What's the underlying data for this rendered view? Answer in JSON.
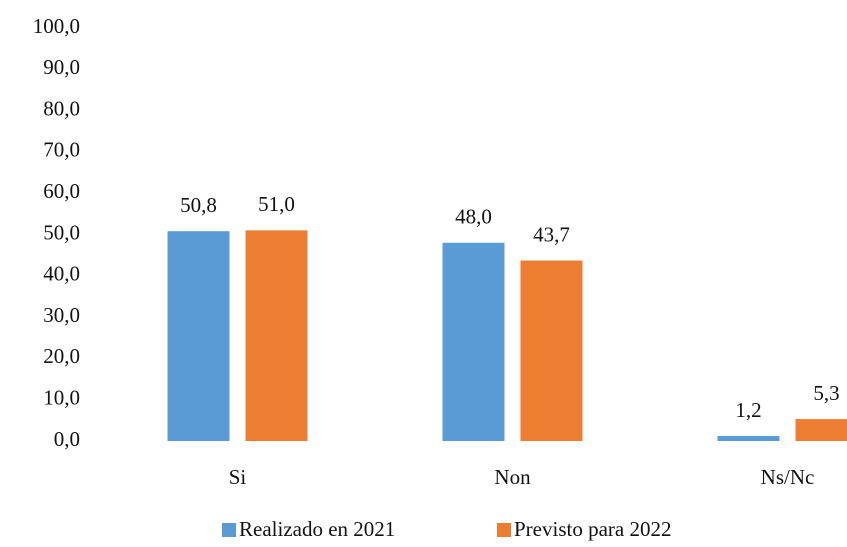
{
  "chart_data": {
    "type": "bar",
    "categories": [
      "Si",
      "Non",
      "Ns/Nc"
    ],
    "series": [
      {
        "name": "Realizado en 2021",
        "color": "#5b9bd5",
        "values": [
          50.8,
          48.0,
          1.2
        ],
        "value_labels": [
          "50,8",
          "48,0",
          "1,2"
        ]
      },
      {
        "name": "Previsto para 2022",
        "color": "#ed7d31",
        "values": [
          51.0,
          43.7,
          5.3
        ],
        "value_labels": [
          "51,0",
          "43,7",
          "5,3"
        ]
      }
    ],
    "ylim": [
      0,
      100
    ],
    "yticks": [
      {
        "value": 0,
        "label": "0,0"
      },
      {
        "value": 10,
        "label": "10,0"
      },
      {
        "value": 20,
        "label": "20,0"
      },
      {
        "value": 30,
        "label": "30,0"
      },
      {
        "value": 40,
        "label": "40,0"
      },
      {
        "value": 50,
        "label": "50,0"
      },
      {
        "value": 60,
        "label": "60,0"
      },
      {
        "value": 70,
        "label": "70,0"
      },
      {
        "value": 80,
        "label": "80,0"
      },
      {
        "value": 90,
        "label": "90,0"
      },
      {
        "value": 100,
        "label": "100,0"
      }
    ],
    "grid": false,
    "legend": "bottom"
  }
}
